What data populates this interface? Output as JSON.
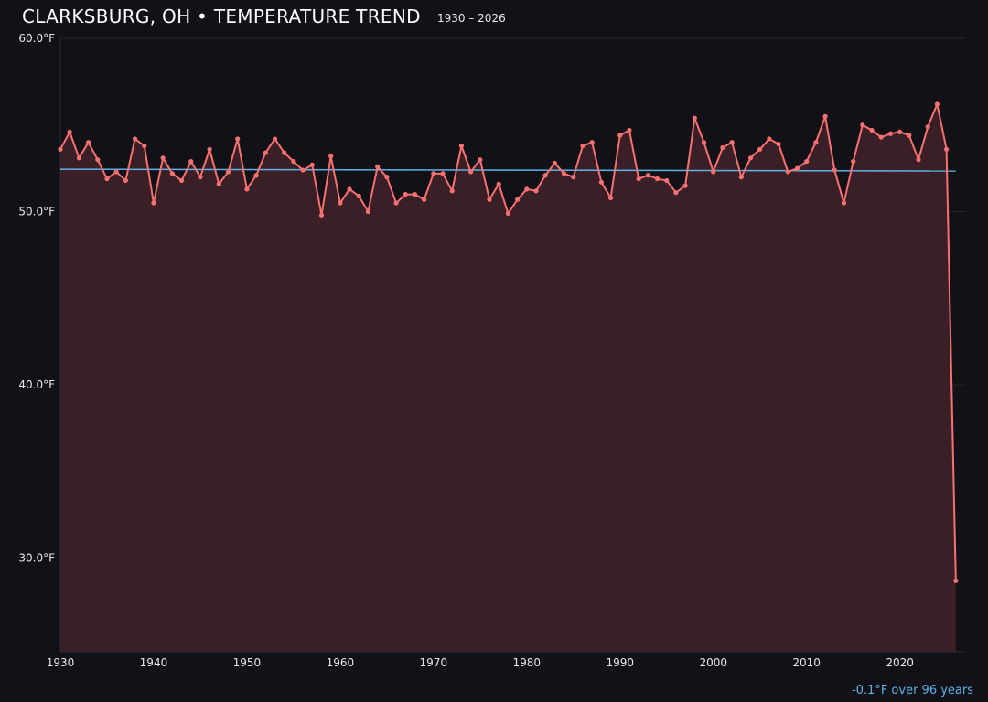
{
  "header": {
    "title": "CLARKSBURG, OH • TEMPERATURE TREND",
    "subtitle": "1930 – 2026"
  },
  "footer": {
    "trend_label": "-0.1°F over 96 years"
  },
  "colors": {
    "background": "#121117",
    "series": "#f87171",
    "fill": "#3a1f26",
    "trend": "#5ab4e8"
  },
  "chart_data": {
    "type": "area",
    "title": "CLARKSBURG, OH • TEMPERATURE TREND",
    "subtitle": "1930 – 2026",
    "xlim": [
      1930,
      2027
    ],
    "ylim": [
      24.6,
      60
    ],
    "x_ticks": [
      "1930",
      "1940",
      "1950",
      "1960",
      "1970",
      "1980",
      "1990",
      "2000",
      "2010",
      "2020"
    ],
    "y_ticks": [
      {
        "value": 30,
        "label": "30.0°F"
      },
      {
        "value": 40,
        "label": "40.0°F"
      },
      {
        "value": 50,
        "label": "50.0°F"
      },
      {
        "value": 60,
        "label": "60.0°F"
      }
    ],
    "grid": true,
    "x_start": 1930,
    "values": [
      53.6,
      54.6,
      53.1,
      54.0,
      53.0,
      51.9,
      52.3,
      51.8,
      54.2,
      53.8,
      50.5,
      53.1,
      52.2,
      51.8,
      52.9,
      52.0,
      53.6,
      51.6,
      52.3,
      54.2,
      51.3,
      52.1,
      53.4,
      54.2,
      53.4,
      52.9,
      52.4,
      52.7,
      49.8,
      53.2,
      50.5,
      51.3,
      50.9,
      50.0,
      52.6,
      52.0,
      50.5,
      51.0,
      51.0,
      50.7,
      52.2,
      52.2,
      51.2,
      53.8,
      52.3,
      53.0,
      50.7,
      51.6,
      49.9,
      50.7,
      51.3,
      51.2,
      52.1,
      52.8,
      52.2,
      52.0,
      53.8,
      54.0,
      51.7,
      50.8,
      54.4,
      54.7,
      51.9,
      52.1,
      51.9,
      51.8,
      51.1,
      51.5,
      55.4,
      54.0,
      52.3,
      53.7,
      54.0,
      52.0,
      53.1,
      53.6,
      54.2,
      53.9,
      52.3,
      52.5,
      52.9,
      54.0,
      55.5,
      52.4,
      50.5,
      52.9,
      55.0,
      54.7,
      54.3,
      54.5,
      54.6,
      54.4,
      53.0,
      54.9,
      56.2,
      53.6,
      28.7
    ],
    "trend": {
      "start": [
        1930,
        52.45
      ],
      "end": [
        2026,
        52.35
      ],
      "label": "-0.1°F over 96 years"
    }
  }
}
